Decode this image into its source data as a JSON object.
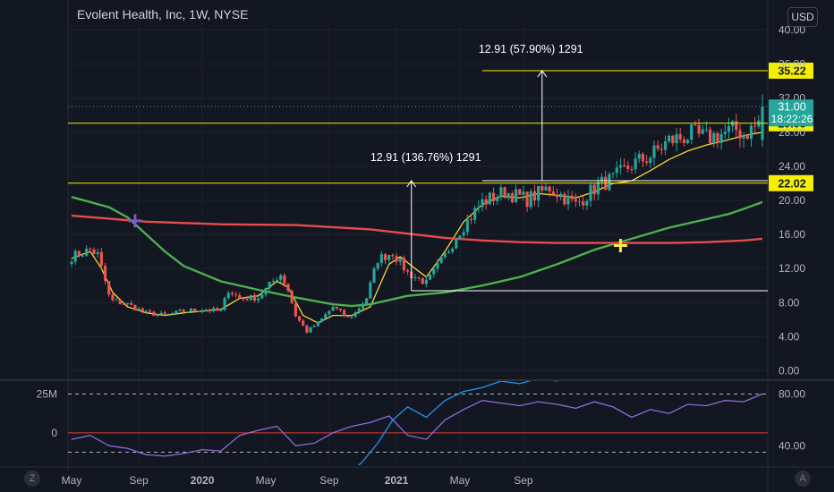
{
  "header": {
    "title": "Evolent Health, Inc, 1W, NYSE",
    "currency": "USD"
  },
  "toolbar": {
    "left_button": "Z",
    "right_button": "A",
    "left_icon": "timezone-icon",
    "right_icon": "auto-scale-icon"
  },
  "colors": {
    "background": "#131722",
    "up": "#26a69a",
    "down": "#ef5350",
    "ma_fast": "#f5d83a",
    "ma_mid": "#4caf50",
    "ma_slow": "#e74c4c",
    "level": "#f5f000",
    "rsi": "#8e6bd6",
    "osc": "#2196f3",
    "zero_line": "#e53935"
  },
  "chart_data": [
    {
      "type": "candlestick",
      "title": "Evolent Health, Inc, 1W, NYSE",
      "ylim": [
        -1,
        41
      ],
      "y_ticks": [
        "40.00",
        "36.00",
        "32.00",
        "28.00",
        "24.00",
        "20.00",
        "16.00",
        "12.00",
        "8.00",
        "4.00",
        "0.00"
      ],
      "x_tick_labels": [
        "May",
        "Sep",
        "2020",
        "May",
        "Sep",
        "2021",
        "May",
        "Sep"
      ],
      "last_price": "31.00",
      "countdown": "18:22:26",
      "price_levels": [
        {
          "value": 35.22,
          "label": "35.22"
        },
        {
          "value": 29.05,
          "label": "29.05"
        },
        {
          "value": 22.02,
          "label": "22.02"
        }
      ],
      "measurements": [
        {
          "label": "12.91 (57.90%) 1291",
          "from": 22.31,
          "to": 35.22
        },
        {
          "label": "12.91 (136.76%) 1291",
          "from": 9.4,
          "to": 22.31
        }
      ],
      "markers": [
        {
          "type": "cross",
          "color": "#7e57c2",
          "week": 17,
          "value": 17.6
        },
        {
          "type": "cross",
          "color": "#ffeb3b",
          "week": 147,
          "value": 14.7
        }
      ],
      "weeks_count": 186,
      "anchors": {
        "weeks": [
          0,
          5,
          7,
          9,
          10,
          11,
          15,
          20,
          25,
          30,
          35,
          40,
          42,
          45,
          50,
          55,
          56,
          58,
          60,
          63,
          66,
          70,
          74,
          76,
          79,
          82,
          86,
          90,
          95,
          100,
          104,
          110,
          116,
          122,
          128,
          135,
          141,
          145,
          150,
          155,
          160,
          166,
          170,
          175,
          178,
          180,
          183,
          184,
          185
        ],
        "close": [
          13.4,
          14.2,
          13.6,
          10.5,
          8.8,
          8.2,
          7.8,
          6.8,
          6.5,
          7.0,
          7.2,
          7.0,
          9.5,
          8.5,
          8.6,
          11.0,
          11.3,
          9.5,
          6.5,
          4.6,
          5.6,
          7.5,
          6.2,
          6.8,
          8.6,
          13.1,
          13.9,
          11.5,
          10.3,
          13.5,
          16.5,
          19.8,
          21.0,
          20.1,
          21.5,
          19.5,
          21.8,
          22.5,
          24.2,
          25.2,
          27.0,
          27.7,
          27.3,
          27.9,
          28.3,
          27.8,
          28.6,
          29.2,
          31.0
        ]
      },
      "moving_averages": [
        {
          "name": "ma_fast",
          "color": "#f5d83a",
          "weeks": [
            0,
            5,
            8,
            11,
            15,
            20,
            25,
            30,
            35,
            40,
            45,
            50,
            55,
            58,
            62,
            66,
            70,
            75,
            80,
            85,
            88,
            92,
            95,
            100,
            105,
            110,
            115,
            120,
            125,
            130,
            135,
            140,
            145,
            150,
            155,
            160,
            165,
            170,
            175,
            180,
            185
          ],
          "values": [
            13.2,
            14.0,
            12.0,
            9.2,
            7.5,
            6.8,
            6.5,
            6.8,
            7.0,
            7.2,
            8.5,
            8.8,
            10.5,
            9.8,
            6.5,
            5.6,
            6.5,
            6.5,
            7.5,
            12.5,
            13.4,
            12.0,
            11.0,
            14.0,
            17.5,
            19.5,
            20.5,
            20.3,
            20.8,
            20.6,
            20.3,
            21.0,
            22.0,
            22.3,
            23.5,
            24.8,
            25.8,
            26.5,
            27.0,
            27.6,
            28.0
          ]
        },
        {
          "name": "ma_mid",
          "color": "#4caf50",
          "weeks": [
            0,
            10,
            15,
            20,
            25,
            30,
            40,
            50,
            60,
            70,
            75,
            80,
            90,
            95,
            100,
            110,
            120,
            130,
            140,
            150,
            160,
            170,
            176,
            180,
            185
          ],
          "values": [
            20.4,
            19.2,
            18.0,
            16.0,
            14.0,
            12.3,
            10.5,
            9.5,
            8.6,
            7.8,
            7.6,
            7.8,
            8.8,
            9.0,
            9.2,
            10.0,
            11.0,
            12.5,
            14.2,
            15.5,
            16.8,
            17.8,
            18.4,
            19.0,
            19.8
          ]
        },
        {
          "name": "ma_slow",
          "color": "#e74c4c",
          "weeks": [
            0,
            20,
            40,
            60,
            80,
            100,
            110,
            120,
            130,
            140,
            150,
            160,
            170,
            180,
            185
          ],
          "values": [
            18.2,
            17.5,
            17.2,
            17.1,
            16.6,
            15.6,
            15.3,
            15.1,
            15.0,
            15.0,
            15.0,
            15.0,
            15.1,
            15.3,
            15.5
          ]
        }
      ]
    },
    {
      "type": "line",
      "name": "oscillator",
      "y_ticks_left": [
        "25M",
        "0"
      ],
      "y_ticks_right": [
        "80.00",
        "40.00"
      ],
      "ylim": [
        25,
        90
      ],
      "guides": [
        80,
        35
      ],
      "zero_level": 50,
      "series": [
        {
          "name": "rsi",
          "color": "#8e6bd6",
          "weeks": [
            0,
            5,
            10,
            15,
            20,
            25,
            30,
            35,
            40,
            45,
            50,
            55,
            60,
            65,
            70,
            75,
            80,
            85,
            90,
            95,
            100,
            105,
            110,
            115,
            120,
            125,
            130,
            135,
            140,
            145,
            150,
            155,
            160,
            165,
            170,
            175,
            180,
            185
          ],
          "values": [
            45,
            48,
            40,
            38,
            33,
            32,
            34,
            37,
            36,
            48,
            52,
            55,
            40,
            42,
            50,
            55,
            58,
            63,
            48,
            45,
            60,
            68,
            75,
            73,
            71,
            74,
            72,
            69,
            74,
            70,
            62,
            68,
            65,
            72,
            71,
            75,
            74,
            80
          ]
        },
        {
          "name": "blue",
          "color": "#2196f3",
          "weeks": [
            0,
            10,
            20,
            30,
            40,
            50,
            60,
            70,
            75,
            78,
            82,
            86,
            90,
            95,
            100,
            105,
            110,
            115,
            120,
            125,
            130,
            135,
            140,
            150,
            160,
            170,
            185
          ],
          "values": [
            5,
            5,
            5,
            5,
            5,
            5,
            5,
            10,
            20,
            28,
            42,
            60,
            70,
            62,
            75,
            82,
            85,
            90,
            88,
            92,
            90,
            100,
            100,
            100,
            100,
            100,
            100
          ]
        }
      ]
    }
  ]
}
